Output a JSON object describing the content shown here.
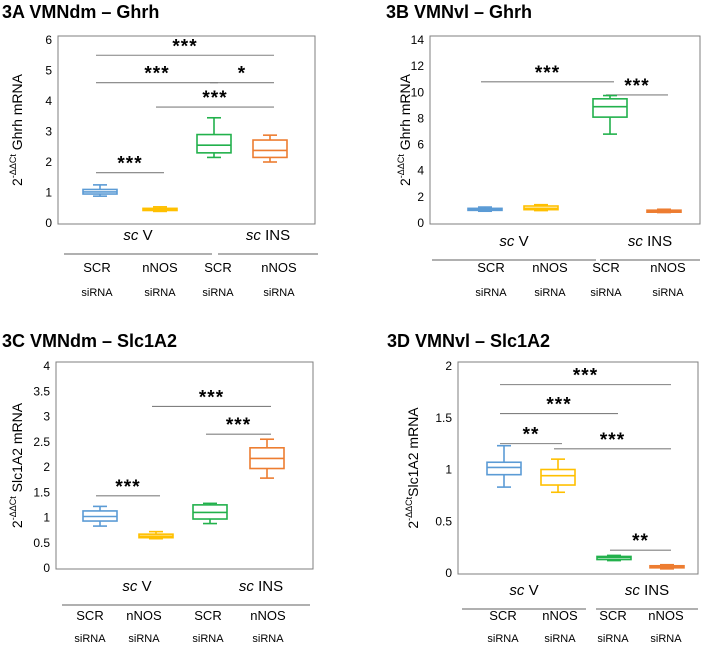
{
  "colors": {
    "SCR_V": "#5b9bd5",
    "nNOS_V": "#ffc000",
    "SCR_INS": "#22b14c",
    "nNOS_INS": "#ed7d31",
    "frame": "#7f7f7f",
    "line": "#808080"
  },
  "chart_data": [
    {
      "id": "3A",
      "type": "box",
      "title": "3A  VMNdm – Ghrh",
      "ylabel": {
        "prefix": "2",
        "sup": "-ΔΔCt",
        "rest": " Ghrh mRNA"
      },
      "ylim": [
        0,
        6
      ],
      "yticks": [
        "0",
        "1",
        "2",
        "3",
        "4",
        "5",
        "6"
      ],
      "groups": [
        {
          "pre": "sc",
          "post": " V"
        },
        {
          "pre": "sc",
          "post": " INS"
        }
      ],
      "categories": [
        {
          "l1": "SCR",
          "l2": "siRNA"
        },
        {
          "l1": "nNOS",
          "l2": "siRNA"
        },
        {
          "l1": "SCR",
          "l2": "siRNA"
        },
        {
          "l1": "nNOS",
          "l2": "siRNA"
        }
      ],
      "series": [
        {
          "name": "SCR siRNA / sc V",
          "color": "SCR_V",
          "min": 0.88,
          "q1": 0.95,
          "median": 1.02,
          "q3": 1.1,
          "max": 1.25
        },
        {
          "name": "nNOS siRNA / sc V",
          "color": "nNOS_V",
          "min": 0.38,
          "q1": 0.41,
          "median": 0.44,
          "q3": 0.48,
          "max": 0.53
        },
        {
          "name": "SCR siRNA / sc INS",
          "color": "SCR_INS",
          "min": 2.15,
          "q1": 2.3,
          "median": 2.55,
          "q3": 2.9,
          "max": 3.45
        },
        {
          "name": "nNOS siRNA / sc INS",
          "color": "nNOS_INS",
          "min": 2.0,
          "q1": 2.15,
          "median": 2.38,
          "q3": 2.72,
          "max": 2.88
        }
      ],
      "significance": [
        {
          "from": 0,
          "to": 3,
          "y": 5.5,
          "label": "***"
        },
        {
          "from": 0,
          "to": 2,
          "y": 4.6,
          "label": "***"
        },
        {
          "from": 2,
          "to": 3,
          "y": 4.6,
          "label": "*"
        },
        {
          "from": 1,
          "to": 3,
          "y": 3.8,
          "label": "***"
        },
        {
          "from": 0,
          "to": 1,
          "y": 1.65,
          "label": "***"
        }
      ]
    },
    {
      "id": "3B",
      "type": "box",
      "title": "3B  VMNvl – Ghrh",
      "ylabel": {
        "prefix": "2",
        "sup": "-ΔΔCt",
        "rest": " Ghrh mRNA"
      },
      "ylim": [
        0,
        14
      ],
      "yticks": [
        "0",
        "2",
        "4",
        "6",
        "8",
        "10",
        "12",
        "14"
      ],
      "groups": [
        {
          "pre": "sc",
          "post": " V"
        },
        {
          "pre": "sc",
          "post": " INS"
        }
      ],
      "categories": [
        {
          "l1": "SCR",
          "l2": "siRNA"
        },
        {
          "l1": "nNOS",
          "l2": "siRNA"
        },
        {
          "l1": "SCR",
          "l2": "siRNA"
        },
        {
          "l1": "nNOS",
          "l2": "siRNA"
        }
      ],
      "series": [
        {
          "name": "SCR siRNA / sc V",
          "color": "SCR_V",
          "min": 0.9,
          "q1": 1.0,
          "median": 1.05,
          "q3": 1.12,
          "max": 1.22
        },
        {
          "name": "nNOS siRNA / sc V",
          "color": "nNOS_V",
          "min": 0.95,
          "q1": 1.02,
          "median": 1.12,
          "q3": 1.3,
          "max": 1.4
        },
        {
          "name": "SCR siRNA / sc INS",
          "color": "SCR_INS",
          "min": 6.8,
          "q1": 8.1,
          "median": 8.9,
          "q3": 9.5,
          "max": 9.75
        },
        {
          "name": "nNOS siRNA / sc INS",
          "color": "nNOS_INS",
          "min": 0.8,
          "q1": 0.85,
          "median": 0.92,
          "q3": 0.98,
          "max": 1.05
        }
      ],
      "significance": [
        {
          "from": 0,
          "to": 2,
          "y": 10.8,
          "label": "***"
        },
        {
          "from": 2,
          "to": 3,
          "y": 9.8,
          "label": "***"
        }
      ]
    },
    {
      "id": "3C",
      "type": "box",
      "title": "3C  VMNdm – Slc1A2",
      "ylabel": {
        "prefix": "2",
        "sup": "-ΔΔCt",
        "rest": " Slc1A2 mRNA"
      },
      "ylim": [
        0,
        4
      ],
      "yticks": [
        "0",
        "0.5",
        "1",
        "1.5",
        "2",
        "2.5",
        "3",
        "3.5",
        "4"
      ],
      "groups": [
        {
          "pre": "sc",
          "post": " V"
        },
        {
          "pre": "sc",
          "post": " INS"
        }
      ],
      "categories": [
        {
          "l1": "SCR",
          "l2": "siRNA"
        },
        {
          "l1": "nNOS",
          "l2": "siRNA"
        },
        {
          "l1": "SCR",
          "l2": "siRNA"
        },
        {
          "l1": "nNOS",
          "l2": "siRNA"
        }
      ],
      "series": [
        {
          "name": "SCR siRNA / sc V",
          "color": "SCR_V",
          "min": 0.83,
          "q1": 0.93,
          "median": 1.02,
          "q3": 1.13,
          "max": 1.22
        },
        {
          "name": "nNOS siRNA / sc V",
          "color": "nNOS_V",
          "min": 0.58,
          "q1": 0.6,
          "median": 0.63,
          "q3": 0.67,
          "max": 0.72
        },
        {
          "name": "SCR siRNA / sc INS",
          "color": "SCR_INS",
          "min": 0.88,
          "q1": 0.97,
          "median": 1.1,
          "q3": 1.25,
          "max": 1.28
        },
        {
          "name": "nNOS siRNA / sc INS",
          "color": "nNOS_INS",
          "min": 1.78,
          "q1": 1.97,
          "median": 2.17,
          "q3": 2.38,
          "max": 2.55
        }
      ],
      "significance": [
        {
          "from": 1,
          "to": 3,
          "y": 3.2,
          "label": "***"
        },
        {
          "from": 2,
          "to": 3,
          "y": 2.65,
          "label": "***"
        },
        {
          "from": 0,
          "to": 1,
          "y": 1.43,
          "label": "***"
        }
      ]
    },
    {
      "id": "3D",
      "type": "box",
      "title": "3D  VMNvl – Slc1A2",
      "ylabel": {
        "prefix": "2",
        "sup": "-ΔΔCt",
        "rest": "Slc1A2 mRNA"
      },
      "ylim": [
        0,
        2
      ],
      "yticks": [
        "0",
        "0.5",
        "1",
        "1.5",
        "2"
      ],
      "groups": [
        {
          "pre": "sc",
          "post": " V"
        },
        {
          "pre": "sc",
          "post": " INS"
        }
      ],
      "categories": [
        {
          "l1": "SCR",
          "l2": "siRNA"
        },
        {
          "l1": "nNOS",
          "l2": "siRNA"
        },
        {
          "l1": "SCR",
          "l2": "siRNA"
        },
        {
          "l1": "nNOS",
          "l2": "siRNA"
        }
      ],
      "series": [
        {
          "name": "SCR siRNA / sc V",
          "color": "SCR_V",
          "min": 0.83,
          "q1": 0.95,
          "median": 1.02,
          "q3": 1.07,
          "max": 1.23
        },
        {
          "name": "nNOS siRNA / sc V",
          "color": "nNOS_V",
          "min": 0.78,
          "q1": 0.85,
          "median": 0.94,
          "q3": 1.0,
          "max": 1.1
        },
        {
          "name": "SCR siRNA / sc INS",
          "color": "SCR_INS",
          "min": 0.12,
          "q1": 0.13,
          "median": 0.15,
          "q3": 0.16,
          "max": 0.17
        },
        {
          "name": "nNOS siRNA / sc INS",
          "color": "nNOS_INS",
          "min": 0.04,
          "q1": 0.05,
          "median": 0.06,
          "q3": 0.07,
          "max": 0.08
        }
      ],
      "significance": [
        {
          "from": 0,
          "to": 3,
          "y": 1.82,
          "label": "***"
        },
        {
          "from": 0,
          "to": 2,
          "y": 1.54,
          "label": "***"
        },
        {
          "from": 0,
          "to": 1,
          "y": 1.25,
          "label": "**"
        },
        {
          "from": 1,
          "to": 3,
          "y": 1.2,
          "label": "***"
        },
        {
          "from": 2,
          "to": 3,
          "y": 0.22,
          "label": "**"
        }
      ]
    }
  ]
}
